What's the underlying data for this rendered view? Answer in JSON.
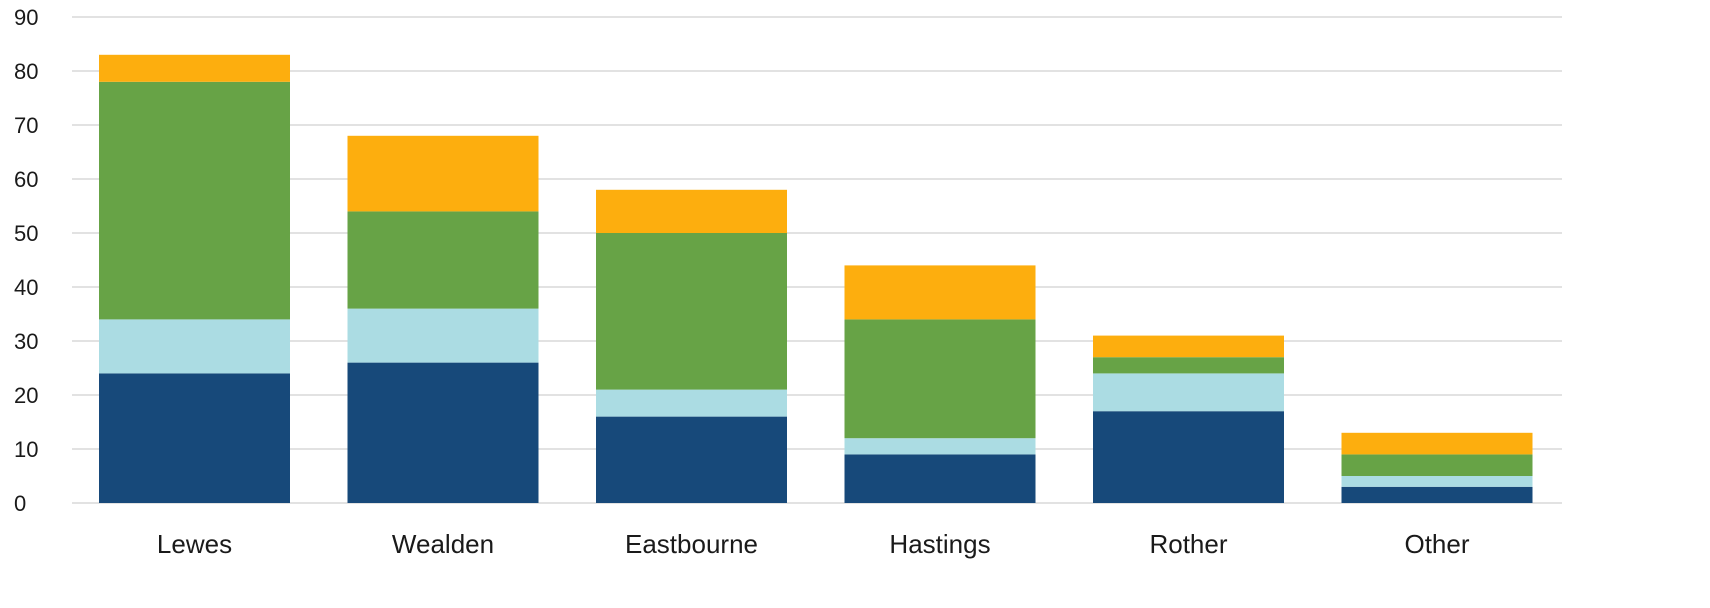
{
  "chart_data": {
    "type": "bar",
    "stacked": true,
    "categories": [
      "Lewes",
      "Wealden",
      "Eastbourne",
      "Hastings",
      "Rother",
      "Other"
    ],
    "series": [
      {
        "color": "#17497a",
        "values": [
          24,
          26,
          16,
          9,
          17,
          3
        ]
      },
      {
        "color": "#abdce3",
        "values": [
          10,
          10,
          5,
          3,
          7,
          2
        ]
      },
      {
        "color": "#67a346",
        "values": [
          44,
          18,
          29,
          22,
          3,
          4
        ]
      },
      {
        "color": "#fdae0e",
        "values": [
          5,
          14,
          8,
          10,
          4,
          4
        ]
      }
    ],
    "y_ticks": [
      "0",
      "10",
      "20",
      "30",
      "40",
      "50",
      "60",
      "70",
      "80",
      "90"
    ],
    "ylim": [
      0,
      90
    ],
    "grid": true,
    "legend": false,
    "title": "",
    "xlabel": "",
    "ylabel": ""
  }
}
